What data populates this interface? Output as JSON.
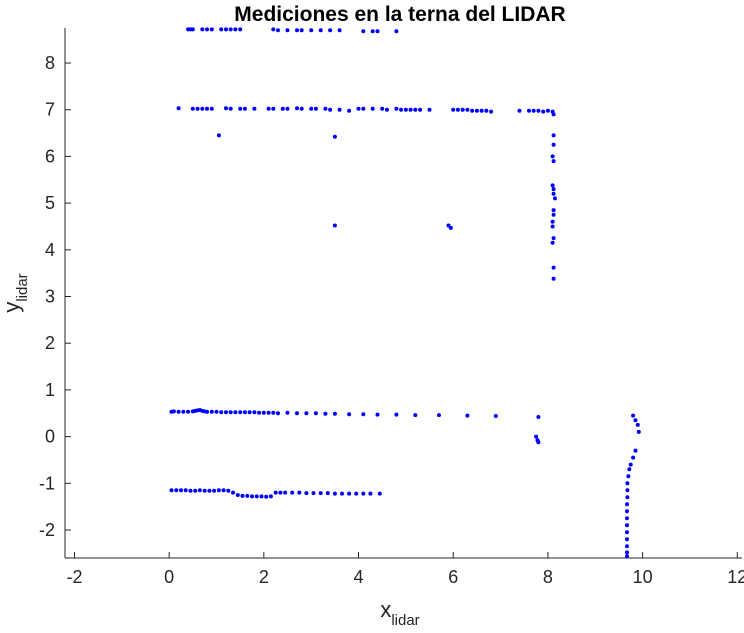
{
  "chart_data": {
    "type": "scatter",
    "title": "Mediciones en la terna del LIDAR",
    "xlabel": {
      "base": "x",
      "subscript": "lidar"
    },
    "ylabel": {
      "base": "y",
      "subscript": "lidar"
    },
    "xlim": [
      -2.2,
      12.1
    ],
    "ylim": [
      -2.6,
      8.75
    ],
    "xticks": [
      -2,
      0,
      2,
      4,
      6,
      8,
      10,
      12
    ],
    "yticks": [
      -2,
      -1,
      0,
      1,
      2,
      3,
      4,
      5,
      6,
      7,
      8
    ],
    "xtick_labels": [
      "-2",
      "0",
      "2",
      "4",
      "6",
      "8",
      "10",
      "12"
    ],
    "ytick_labels": [
      "-2",
      "-1",
      "0",
      "1",
      "2",
      "3",
      "4",
      "5",
      "6",
      "7",
      "8"
    ],
    "grid": false,
    "legend": "none",
    "marker_color": "#0000ff",
    "series": [
      {
        "points": [
          [
            0.4,
            8.72
          ],
          [
            0.45,
            8.72
          ],
          [
            0.5,
            8.72
          ],
          [
            0.7,
            8.72
          ],
          [
            0.8,
            8.72
          ],
          [
            0.9,
            8.72
          ],
          [
            1.1,
            8.72
          ],
          [
            1.2,
            8.72
          ],
          [
            1.3,
            8.72
          ],
          [
            1.4,
            8.72
          ],
          [
            1.5,
            8.72
          ],
          [
            2.2,
            8.72
          ],
          [
            2.3,
            8.7
          ],
          [
            2.5,
            8.7
          ],
          [
            2.7,
            8.7
          ],
          [
            2.8,
            8.7
          ],
          [
            3.0,
            8.7
          ],
          [
            3.2,
            8.7
          ],
          [
            3.4,
            8.7
          ],
          [
            3.6,
            8.7
          ],
          [
            4.1,
            8.68
          ],
          [
            4.3,
            8.68
          ],
          [
            4.4,
            8.68
          ],
          [
            4.8,
            8.68
          ],
          [
            0.2,
            7.03
          ],
          [
            0.5,
            7.02
          ],
          [
            0.6,
            7.02
          ],
          [
            0.7,
            7.02
          ],
          [
            0.8,
            7.02
          ],
          [
            0.9,
            7.02
          ],
          [
            1.2,
            7.03
          ],
          [
            1.3,
            7.02
          ],
          [
            1.5,
            7.02
          ],
          [
            1.6,
            7.02
          ],
          [
            1.8,
            7.02
          ],
          [
            2.1,
            7.02
          ],
          [
            2.2,
            7.02
          ],
          [
            2.4,
            7.02
          ],
          [
            2.5,
            7.02
          ],
          [
            2.7,
            7.03
          ],
          [
            2.8,
            7.02
          ],
          [
            3.0,
            7.02
          ],
          [
            3.1,
            7.02
          ],
          [
            3.3,
            7.02
          ],
          [
            3.4,
            7.0
          ],
          [
            3.6,
            7.0
          ],
          [
            3.8,
            6.98
          ],
          [
            4.0,
            7.02
          ],
          [
            4.1,
            7.02
          ],
          [
            4.3,
            7.02
          ],
          [
            4.5,
            7.02
          ],
          [
            4.6,
            7.0
          ],
          [
            4.8,
            7.02
          ],
          [
            4.9,
            7.0
          ],
          [
            5.0,
            7.0
          ],
          [
            5.1,
            7.0
          ],
          [
            5.2,
            7.0
          ],
          [
            5.3,
            7.0
          ],
          [
            5.5,
            7.0
          ],
          [
            6.0,
            7.0
          ],
          [
            6.1,
            7.0
          ],
          [
            6.2,
            7.0
          ],
          [
            6.3,
            7.0
          ],
          [
            6.4,
            6.98
          ],
          [
            6.5,
            6.98
          ],
          [
            6.6,
            6.98
          ],
          [
            6.7,
            6.98
          ],
          [
            6.8,
            6.96
          ],
          [
            7.4,
            6.98
          ],
          [
            7.6,
            6.98
          ],
          [
            7.7,
            6.98
          ],
          [
            7.8,
            6.98
          ],
          [
            7.9,
            6.96
          ],
          [
            8.0,
            6.98
          ],
          [
            8.1,
            6.96
          ],
          [
            8.12,
            6.9
          ],
          [
            1.05,
            6.45
          ],
          [
            3.5,
            6.42
          ],
          [
            8.12,
            6.45
          ],
          [
            8.12,
            6.25
          ],
          [
            8.1,
            6.0
          ],
          [
            8.12,
            5.9
          ],
          [
            8.1,
            5.38
          ],
          [
            8.12,
            5.3
          ],
          [
            8.12,
            5.2
          ],
          [
            8.15,
            5.1
          ],
          [
            8.12,
            4.85
          ],
          [
            8.12,
            4.75
          ],
          [
            8.1,
            4.6
          ],
          [
            8.1,
            4.5
          ],
          [
            8.12,
            4.25
          ],
          [
            8.1,
            4.15
          ],
          [
            8.12,
            3.62
          ],
          [
            8.12,
            3.38
          ],
          [
            3.5,
            4.52
          ],
          [
            5.9,
            4.52
          ],
          [
            5.95,
            4.47
          ],
          [
            0.05,
            0.53
          ],
          [
            0.1,
            0.54
          ],
          [
            0.2,
            0.53
          ],
          [
            0.3,
            0.53
          ],
          [
            0.4,
            0.53
          ],
          [
            0.5,
            0.54
          ],
          [
            0.55,
            0.55
          ],
          [
            0.6,
            0.56
          ],
          [
            0.65,
            0.57
          ],
          [
            0.7,
            0.55
          ],
          [
            0.75,
            0.54
          ],
          [
            0.8,
            0.53
          ],
          [
            0.9,
            0.53
          ],
          [
            1.0,
            0.53
          ],
          [
            1.1,
            0.52
          ],
          [
            1.2,
            0.52
          ],
          [
            1.3,
            0.52
          ],
          [
            1.4,
            0.52
          ],
          [
            1.5,
            0.52
          ],
          [
            1.6,
            0.52
          ],
          [
            1.7,
            0.52
          ],
          [
            1.8,
            0.52
          ],
          [
            1.9,
            0.51
          ],
          [
            2.0,
            0.51
          ],
          [
            2.1,
            0.51
          ],
          [
            2.2,
            0.51
          ],
          [
            2.3,
            0.5
          ],
          [
            2.5,
            0.51
          ],
          [
            2.7,
            0.5
          ],
          [
            2.9,
            0.5
          ],
          [
            3.1,
            0.5
          ],
          [
            3.3,
            0.49
          ],
          [
            3.5,
            0.49
          ],
          [
            3.8,
            0.48
          ],
          [
            4.1,
            0.48
          ],
          [
            4.4,
            0.47
          ],
          [
            4.8,
            0.47
          ],
          [
            5.2,
            0.46
          ],
          [
            5.7,
            0.46
          ],
          [
            6.3,
            0.45
          ],
          [
            6.9,
            0.44
          ],
          [
            7.8,
            0.42
          ],
          [
            7.75,
            0.0
          ],
          [
            7.78,
            -0.08
          ],
          [
            7.8,
            -0.12
          ],
          [
            9.8,
            0.45
          ],
          [
            9.85,
            0.35
          ],
          [
            9.9,
            0.25
          ],
          [
            9.92,
            0.1
          ],
          [
            9.85,
            -0.3
          ],
          [
            9.8,
            -0.45
          ],
          [
            9.75,
            -0.6
          ],
          [
            9.72,
            -0.7
          ],
          [
            9.7,
            -0.85
          ],
          [
            9.68,
            -1.0
          ],
          [
            9.68,
            -1.15
          ],
          [
            9.68,
            -1.3
          ],
          [
            9.67,
            -1.45
          ],
          [
            9.67,
            -1.6
          ],
          [
            9.67,
            -1.75
          ],
          [
            9.67,
            -1.9
          ],
          [
            9.67,
            -2.05
          ],
          [
            9.67,
            -2.2
          ],
          [
            9.67,
            -2.35
          ],
          [
            9.67,
            -2.48
          ],
          [
            9.67,
            -2.56
          ],
          [
            0.05,
            -1.15
          ],
          [
            0.15,
            -1.15
          ],
          [
            0.25,
            -1.15
          ],
          [
            0.35,
            -1.15
          ],
          [
            0.45,
            -1.16
          ],
          [
            0.55,
            -1.16
          ],
          [
            0.65,
            -1.15
          ],
          [
            0.75,
            -1.16
          ],
          [
            0.85,
            -1.16
          ],
          [
            0.95,
            -1.16
          ],
          [
            1.05,
            -1.15
          ],
          [
            1.15,
            -1.15
          ],
          [
            1.25,
            -1.16
          ],
          [
            1.35,
            -1.2
          ],
          [
            1.45,
            -1.25
          ],
          [
            1.55,
            -1.27
          ],
          [
            1.65,
            -1.27
          ],
          [
            1.75,
            -1.28
          ],
          [
            1.85,
            -1.28
          ],
          [
            1.95,
            -1.28
          ],
          [
            2.05,
            -1.29
          ],
          [
            2.15,
            -1.28
          ],
          [
            2.25,
            -1.2
          ],
          [
            2.35,
            -1.2
          ],
          [
            2.45,
            -1.2
          ],
          [
            2.6,
            -1.2
          ],
          [
            2.75,
            -1.2
          ],
          [
            2.9,
            -1.21
          ],
          [
            3.05,
            -1.21
          ],
          [
            3.2,
            -1.21
          ],
          [
            3.35,
            -1.21
          ],
          [
            3.5,
            -1.22
          ],
          [
            3.65,
            -1.22
          ],
          [
            3.8,
            -1.22
          ],
          [
            3.95,
            -1.22
          ],
          [
            4.1,
            -1.22
          ],
          [
            4.25,
            -1.22
          ],
          [
            4.45,
            -1.22
          ]
        ]
      }
    ]
  }
}
